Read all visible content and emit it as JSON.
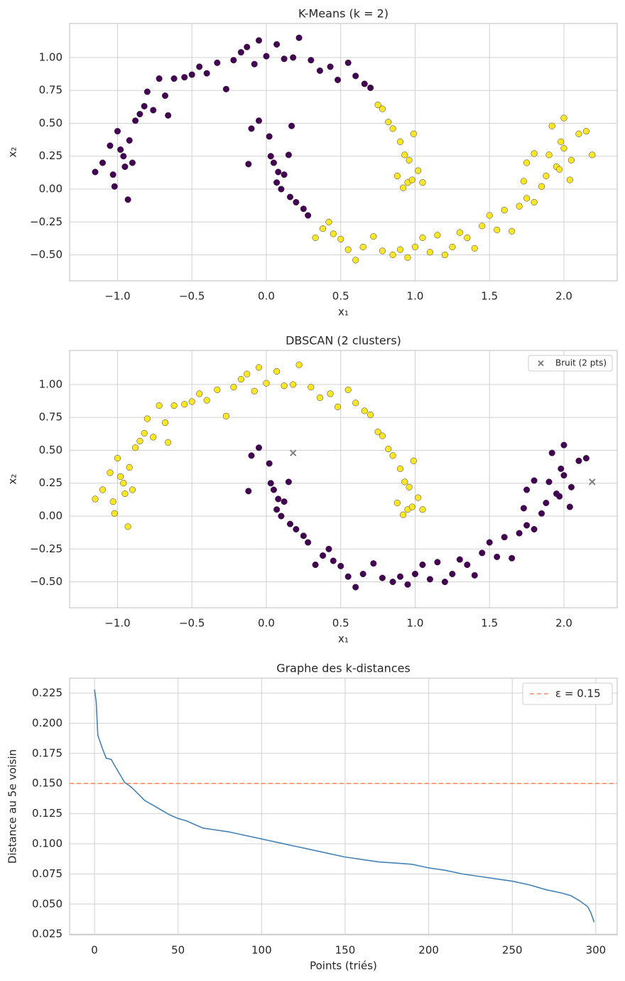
{
  "chart_data": [
    {
      "type": "scatter",
      "title": "K-Means (k = 2)",
      "xlabel": "x₁",
      "ylabel": "x₂",
      "xlim": [
        -1.322,
        2.358
      ],
      "ylim": [
        -0.697,
        1.259
      ],
      "grid": true,
      "xticks": [
        {
          "value": -1,
          "label": "−1.0"
        },
        {
          "value": -0.5,
          "label": "−0.5"
        },
        {
          "value": 0,
          "label": "0.0"
        },
        {
          "value": 0.5,
          "label": "0.5"
        },
        {
          "value": 1,
          "label": "1.0"
        },
        {
          "value": 1.5,
          "label": "1.5"
        },
        {
          "value": 2,
          "label": "2.0"
        }
      ],
      "yticks": [
        {
          "value": -0.5,
          "label": "−0.50"
        },
        {
          "value": -0.25,
          "label": "−0.25"
        },
        {
          "value": 0,
          "label": "0.00"
        },
        {
          "value": 0.25,
          "label": "0.25"
        },
        {
          "value": 0.5,
          "label": "0.50"
        },
        {
          "value": 0.75,
          "label": "0.75"
        },
        {
          "value": 1,
          "label": "1.00"
        }
      ],
      "series": [
        {
          "color": "#440154",
          "marker": "o",
          "x": [
            -1.15,
            -1.1,
            -1.05,
            -1.03,
            -1.02,
            -1.0,
            -0.98,
            -0.96,
            -0.95,
            -0.93,
            -0.92,
            -0.9,
            -0.88,
            -0.85,
            -0.82,
            -0.8,
            -0.76,
            -0.72,
            -0.68,
            -0.66,
            -0.62,
            -0.55,
            -0.5,
            -0.45,
            -0.4,
            -0.33,
            -0.27,
            -0.22,
            -0.17,
            -0.13,
            -0.08,
            -0.05,
            0.0,
            0.07,
            0.12,
            0.18,
            0.22,
            0.3,
            0.36,
            0.43,
            0.48,
            0.55,
            0.6,
            0.66,
            0.7,
            -0.1,
            -0.12,
            -0.05,
            0.02,
            0.03,
            0.05,
            0.08,
            0.12,
            0.15,
            0.17,
            0.07,
            0.1,
            0.16,
            0.2,
            0.25,
            0.28
          ],
          "values": [
            0.13,
            0.2,
            0.33,
            0.11,
            0.02,
            0.44,
            0.3,
            0.25,
            0.17,
            -0.08,
            0.37,
            0.2,
            0.52,
            0.57,
            0.63,
            0.74,
            0.6,
            0.84,
            0.71,
            0.56,
            0.84,
            0.85,
            0.87,
            0.93,
            0.88,
            0.96,
            0.76,
            0.98,
            1.04,
            1.08,
            0.95,
            1.13,
            1.01,
            1.1,
            0.99,
            1.0,
            1.15,
            0.98,
            0.9,
            0.93,
            0.83,
            0.96,
            0.86,
            0.8,
            0.77,
            0.46,
            0.19,
            0.52,
            0.4,
            0.25,
            0.2,
            0.13,
            0.11,
            0.26,
            0.48,
            0.05,
            0.0,
            -0.06,
            -0.1,
            -0.15,
            -0.2
          ]
        },
        {
          "color": "#fde725",
          "marker": "o",
          "x": [
            0.75,
            0.78,
            0.82,
            0.85,
            0.9,
            0.93,
            0.96,
            0.95,
            0.99,
            1.02,
            1.05,
            0.88,
            0.92,
            0.98,
            0.33,
            0.38,
            0.42,
            0.45,
            0.5,
            0.55,
            0.6,
            0.65,
            0.72,
            0.78,
            0.85,
            0.9,
            0.95,
            1.0,
            1.05,
            1.1,
            1.15,
            1.2,
            1.25,
            1.3,
            1.35,
            1.4,
            1.45,
            1.5,
            1.55,
            1.6,
            1.65,
            1.7,
            1.75,
            1.8,
            1.85,
            1.88,
            1.9,
            1.95,
            1.98,
            2.0,
            2.05,
            2.1,
            2.15,
            2.0,
            1.92,
            1.75,
            1.8,
            1.73,
            2.04,
            1.97,
            2.19
          ],
          "values": [
            0.64,
            0.61,
            0.51,
            0.46,
            0.36,
            0.26,
            0.22,
            0.05,
            0.42,
            0.14,
            0.05,
            0.1,
            0.01,
            0.07,
            -0.37,
            -0.3,
            -0.25,
            -0.34,
            -0.38,
            -0.46,
            -0.54,
            -0.44,
            -0.36,
            -0.47,
            -0.5,
            -0.46,
            -0.52,
            -0.44,
            -0.37,
            -0.48,
            -0.35,
            -0.5,
            -0.44,
            -0.33,
            -0.37,
            -0.45,
            -0.28,
            -0.2,
            -0.31,
            -0.16,
            -0.32,
            -0.13,
            -0.07,
            -0.1,
            0.02,
            0.1,
            0.26,
            0.17,
            0.36,
            0.31,
            0.22,
            0.42,
            0.44,
            0.54,
            0.48,
            0.2,
            0.27,
            0.06,
            0.07,
            0.15,
            0.26
          ]
        }
      ]
    },
    {
      "type": "scatter",
      "title": "DBSCAN (2 clusters)",
      "xlabel": "x₁",
      "ylabel": "x₂",
      "xlim": [
        -1.322,
        2.358
      ],
      "ylim": [
        -0.697,
        1.259
      ],
      "grid": true,
      "legend": "upper right",
      "xticks": [
        {
          "value": -1,
          "label": "−1.0"
        },
        {
          "value": -0.5,
          "label": "−0.5"
        },
        {
          "value": 0,
          "label": "0.0"
        },
        {
          "value": 0.5,
          "label": "0.5"
        },
        {
          "value": 1,
          "label": "1.0"
        },
        {
          "value": 1.5,
          "label": "1.5"
        },
        {
          "value": 2,
          "label": "2.0"
        }
      ],
      "yticks": [
        {
          "value": -0.5,
          "label": "−0.50"
        },
        {
          "value": -0.25,
          "label": "−0.25"
        },
        {
          "value": 0,
          "label": "0.00"
        },
        {
          "value": 0.25,
          "label": "0.25"
        },
        {
          "value": 0.5,
          "label": "0.50"
        },
        {
          "value": 0.75,
          "label": "0.75"
        },
        {
          "value": 1,
          "label": "1.00"
        }
      ],
      "series": [
        {
          "color": "#fde725",
          "marker": "o",
          "x": [
            -1.15,
            -1.1,
            -1.05,
            -1.03,
            -1.02,
            -1.0,
            -0.98,
            -0.96,
            -0.95,
            -0.93,
            -0.92,
            -0.9,
            -0.88,
            -0.85,
            -0.82,
            -0.8,
            -0.76,
            -0.72,
            -0.68,
            -0.66,
            -0.62,
            -0.55,
            -0.5,
            -0.45,
            -0.4,
            -0.33,
            -0.27,
            -0.22,
            -0.17,
            -0.13,
            -0.08,
            -0.05,
            0.0,
            0.07,
            0.12,
            0.18,
            0.22,
            0.3,
            0.36,
            0.43,
            0.48,
            0.55,
            0.6,
            0.66,
            0.7,
            0.75,
            0.78,
            0.82,
            0.85,
            0.9,
            0.93,
            0.96,
            0.95,
            0.99,
            1.02,
            1.05,
            0.88,
            0.92,
            0.98
          ],
          "values": [
            0.13,
            0.2,
            0.33,
            0.11,
            0.02,
            0.44,
            0.3,
            0.25,
            0.17,
            -0.08,
            0.37,
            0.2,
            0.52,
            0.57,
            0.63,
            0.74,
            0.6,
            0.84,
            0.71,
            0.56,
            0.84,
            0.85,
            0.87,
            0.93,
            0.88,
            0.96,
            0.76,
            0.98,
            1.04,
            1.08,
            0.95,
            1.13,
            1.01,
            1.1,
            0.99,
            1.0,
            1.15,
            0.98,
            0.9,
            0.93,
            0.83,
            0.96,
            0.86,
            0.8,
            0.77,
            0.64,
            0.61,
            0.51,
            0.46,
            0.36,
            0.26,
            0.22,
            0.05,
            0.42,
            0.14,
            0.05,
            0.1,
            0.01,
            0.07
          ]
        },
        {
          "color": "#440154",
          "marker": "o",
          "x": [
            -0.1,
            -0.12,
            -0.05,
            0.02,
            0.03,
            0.05,
            0.08,
            0.12,
            0.15,
            0.07,
            0.1,
            0.16,
            0.2,
            0.25,
            0.28,
            0.33,
            0.38,
            0.42,
            0.45,
            0.5,
            0.55,
            0.6,
            0.65,
            0.72,
            0.78,
            0.85,
            0.9,
            0.95,
            1.0,
            1.05,
            1.1,
            1.15,
            1.2,
            1.25,
            1.3,
            1.35,
            1.4,
            1.45,
            1.5,
            1.55,
            1.6,
            1.65,
            1.7,
            1.75,
            1.8,
            1.85,
            1.88,
            1.9,
            1.95,
            1.98,
            2.0,
            2.05,
            2.1,
            2.15,
            2.0,
            1.92,
            1.75,
            1.8,
            1.73,
            2.04,
            1.97
          ],
          "values": [
            0.46,
            0.19,
            0.52,
            0.4,
            0.25,
            0.2,
            0.13,
            0.11,
            0.26,
            0.05,
            0.0,
            -0.06,
            -0.1,
            -0.15,
            -0.2,
            -0.37,
            -0.3,
            -0.25,
            -0.34,
            -0.38,
            -0.46,
            -0.54,
            -0.44,
            -0.36,
            -0.47,
            -0.5,
            -0.46,
            -0.52,
            -0.44,
            -0.37,
            -0.48,
            -0.35,
            -0.5,
            -0.44,
            -0.33,
            -0.37,
            -0.45,
            -0.28,
            -0.2,
            -0.31,
            -0.16,
            -0.32,
            -0.13,
            -0.07,
            -0.1,
            0.02,
            0.1,
            0.26,
            0.17,
            0.36,
            0.31,
            0.22,
            0.42,
            0.44,
            0.54,
            0.48,
            0.2,
            0.27,
            0.06,
            0.07,
            0.15
          ]
        },
        {
          "name": "Bruit (2 pts)",
          "color": "#808080",
          "marker": "x",
          "x": [
            0.18,
            2.19
          ],
          "values": [
            0.48,
            0.26
          ]
        }
      ]
    },
    {
      "type": "line",
      "title": "Graphe des k-distances",
      "xlabel": "Points (triés)",
      "ylabel": "Distance au 5e voisin",
      "xlim": [
        -14.9,
        312.8
      ],
      "ylim": [
        0.0245,
        0.2374
      ],
      "grid": true,
      "legend": "upper right",
      "xticks": [
        0,
        50,
        100,
        150,
        200,
        250,
        300
      ],
      "yticks": [
        0.025,
        {
          "value": 0.05,
          "label": "0.050"
        },
        0.075,
        {
          "value": 0.1,
          "label": "0.100"
        },
        0.125,
        {
          "value": 0.15,
          "label": "0.150"
        },
        0.175,
        {
          "value": 0.2,
          "label": "0.200"
        },
        0.225
      ],
      "series": [
        {
          "color": "#4682b4",
          "x": [
            0,
            1,
            2,
            5,
            7,
            10,
            12,
            15,
            18,
            22,
            25,
            30,
            35,
            40,
            45,
            50,
            55,
            60,
            65,
            70,
            80,
            90,
            100,
            110,
            120,
            130,
            140,
            150,
            160,
            170,
            180,
            190,
            200,
            210,
            220,
            230,
            240,
            250,
            260,
            270,
            280,
            285,
            290,
            295,
            297,
            299
          ],
          "values": [
            0.228,
            0.218,
            0.19,
            0.178,
            0.171,
            0.17,
            0.165,
            0.158,
            0.151,
            0.147,
            0.143,
            0.136,
            0.132,
            0.128,
            0.124,
            0.121,
            0.119,
            0.116,
            0.113,
            0.112,
            0.11,
            0.107,
            0.104,
            0.101,
            0.098,
            0.095,
            0.092,
            0.089,
            0.087,
            0.085,
            0.084,
            0.083,
            0.08,
            0.078,
            0.075,
            0.073,
            0.071,
            0.069,
            0.066,
            0.062,
            0.059,
            0.057,
            0.053,
            0.048,
            0.043,
            0.035
          ]
        }
      ],
      "reference_lines": [
        {
          "name": "ε = 0.15",
          "value": 0.15,
          "color": "#fc8d62"
        }
      ]
    }
  ]
}
